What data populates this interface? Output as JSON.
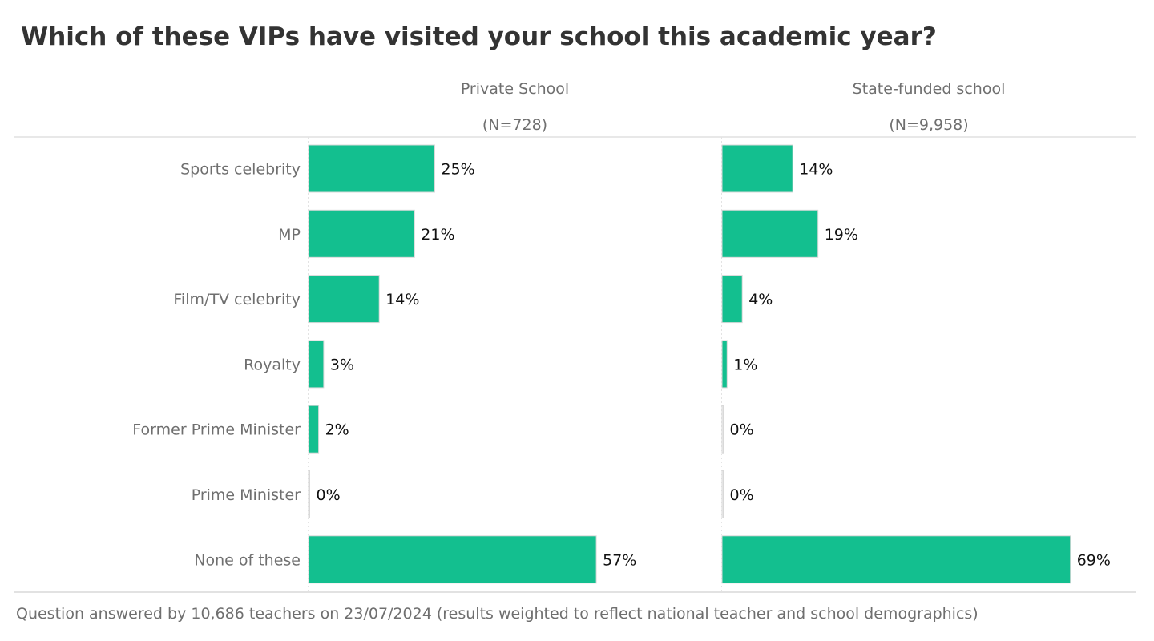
{
  "title": "Which of these VIPs have visited your school this academic year?",
  "footnote": "Question answered by 10,686 teachers on 23/07/2024 (results weighted to reflect national teacher and school demographics)",
  "colors": {
    "bar": "#13bf8f",
    "bar_edge": "#d9d9d9",
    "rule": "#d0d0d0",
    "header_text": "#6f6f6f",
    "value_text": "#111111"
  },
  "chart_data": {
    "type": "bar",
    "orientation": "horizontal",
    "categories": [
      "Sports celebrity",
      "MP",
      "Film/TV celebrity",
      "Royalty",
      "Former Prime Minister",
      "Prime Minister",
      "None of these"
    ],
    "series": [
      {
        "name": "Private School",
        "sample": "(N=728)",
        "values": [
          25,
          21,
          14,
          3,
          2,
          0,
          57
        ],
        "labels": [
          "25%",
          "21%",
          "14%",
          "3%",
          "2%",
          "0%",
          "57%"
        ]
      },
      {
        "name": "State-funded school",
        "sample": "(N=9,958)",
        "values": [
          14,
          19,
          4,
          1,
          0,
          0,
          69
        ],
        "labels": [
          "14%",
          "19%",
          "4%",
          "1%",
          "0%",
          "0%",
          "69%"
        ]
      }
    ],
    "unit": "%",
    "xlim": [
      0,
      100
    ],
    "grid": false,
    "legend": "column headers above panels"
  }
}
